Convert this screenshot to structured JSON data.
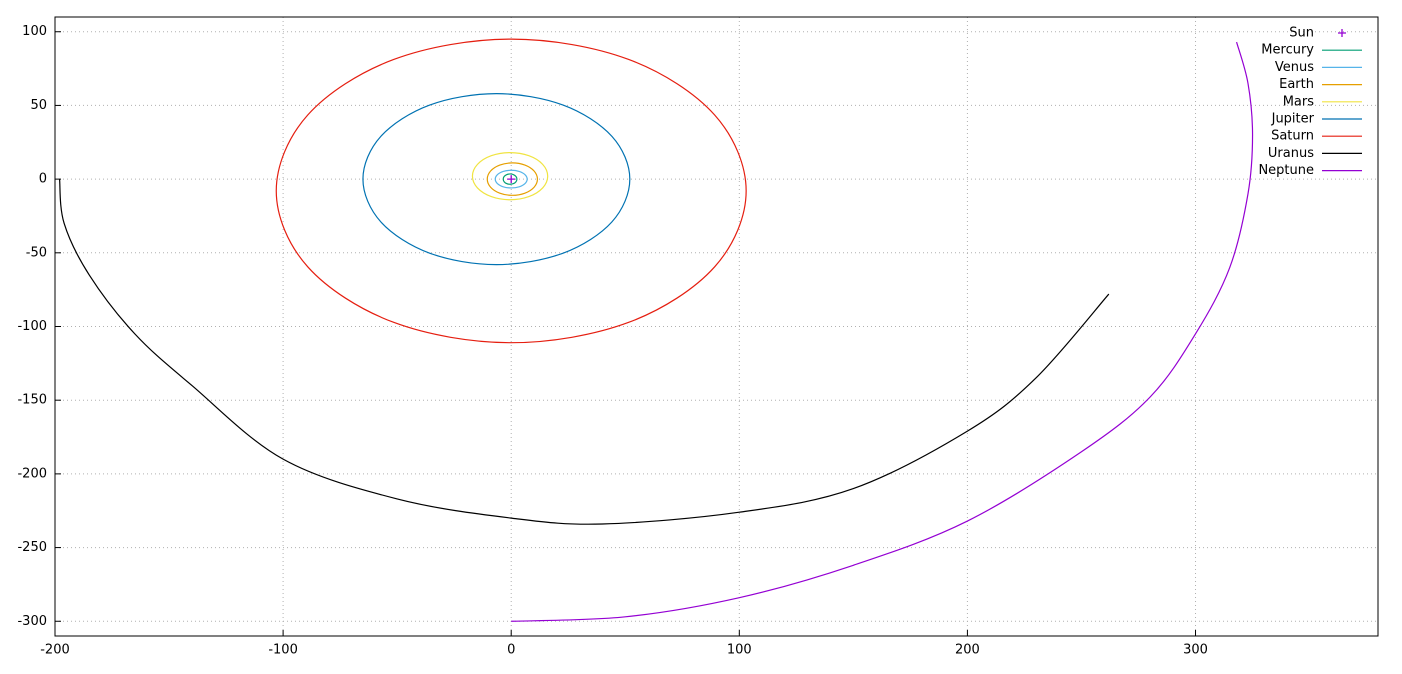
{
  "chart_data": {
    "type": "line",
    "grid": true,
    "legend": "top-right",
    "xlim": [
      -200,
      380
    ],
    "ylim": [
      -310,
      110
    ],
    "xticks": [
      -200,
      -100,
      0,
      100,
      200,
      300
    ],
    "yticks": [
      -300,
      -250,
      -200,
      -150,
      -100,
      -50,
      0,
      50,
      100
    ],
    "series": [
      {
        "name": "Sun",
        "color": "#9400d3",
        "marker": "plus",
        "x": [
          0
        ],
        "values": [
          0
        ]
      },
      {
        "name": "Mercury",
        "color": "#009e73",
        "x": [
          2.5,
          2.1,
          1,
          -0.5,
          -2,
          -3.1,
          -3.5,
          -3.1,
          -2,
          -0.5,
          1,
          2.1,
          2.5
        ],
        "values": [
          0,
          1.75,
          3.03,
          3.5,
          3.03,
          1.75,
          0,
          -1.75,
          -3.03,
          -3.5,
          -3.03,
          -1.75,
          0
        ]
      },
      {
        "name": "Venus",
        "color": "#56b4e9",
        "x": [
          7,
          6.06,
          3.5,
          0,
          -3.5,
          -6.06,
          -7,
          -6.06,
          -3.5,
          0,
          3.5,
          6.06,
          7
        ],
        "values": [
          0,
          3,
          5.2,
          6,
          5.2,
          3,
          0,
          -3,
          -5.2,
          -6,
          -5.2,
          -3,
          0
        ]
      },
      {
        "name": "Earth",
        "color": "#e69f00",
        "x": [
          11.5,
          10.03,
          6,
          0.5,
          -5,
          -9.03,
          -10.5,
          -9.03,
          -5,
          0.5,
          6,
          10.03,
          11.5
        ],
        "values": [
          0,
          5.5,
          9.53,
          11,
          9.53,
          5.5,
          0,
          -5.5,
          -9.53,
          -11,
          -9.53,
          -5.5,
          0
        ]
      },
      {
        "name": "Mars",
        "color": "#f0e442",
        "x": [
          16,
          13.79,
          7.75,
          -0.5,
          -8.75,
          -14.79,
          -17,
          -14.79,
          -8.75,
          -0.5,
          7.75,
          13.79,
          16
        ],
        "values": [
          2,
          10,
          15.86,
          18,
          15.86,
          10,
          2,
          -6,
          -11.86,
          -14,
          -11.86,
          -6,
          2
        ]
      },
      {
        "name": "Jupiter",
        "color": "#0072b2",
        "x": [
          52,
          44.16,
          22.75,
          -6.5,
          -35.75,
          -57.16,
          -65,
          -57.16,
          -35.75,
          -6.5,
          22.75,
          44.16,
          52
        ],
        "values": [
          0,
          29,
          50.23,
          58,
          50.23,
          29,
          0,
          -29,
          -50.23,
          -58,
          -50.23,
          -29,
          0
        ]
      },
      {
        "name": "Saturn",
        "color": "#e51e10",
        "x": [
          103,
          89.2,
          51.5,
          0,
          -51.5,
          -89.2,
          -103,
          -89.2,
          -51.5,
          0,
          51.5,
          89.2,
          103
        ],
        "values": [
          -8,
          43.5,
          81.2,
          95,
          81.2,
          43.5,
          -8,
          -59.5,
          -97.2,
          -111,
          -97.2,
          -59.5,
          -8
        ]
      },
      {
        "name": "Uranus",
        "color": "#000000",
        "x": [
          -198,
          -196,
          -185,
          -165,
          -140,
          -100,
          -50,
          0,
          40,
          100,
          150,
          200,
          230,
          262
        ],
        "values": [
          0,
          -30,
          -65,
          -105,
          -140,
          -190,
          -217,
          -230,
          -234,
          -226,
          -210,
          -171,
          -135,
          -78
        ]
      },
      {
        "name": "Neptune",
        "color": "#9400d3",
        "x": [
          0,
          50,
          100,
          150,
          200,
          250,
          280,
          300,
          315,
          323,
          325,
          323,
          318
        ],
        "values": [
          -300,
          -297,
          -284,
          -262,
          -232,
          -185,
          -148,
          -105,
          -60,
          -10,
          30,
          65,
          93
        ]
      }
    ]
  }
}
